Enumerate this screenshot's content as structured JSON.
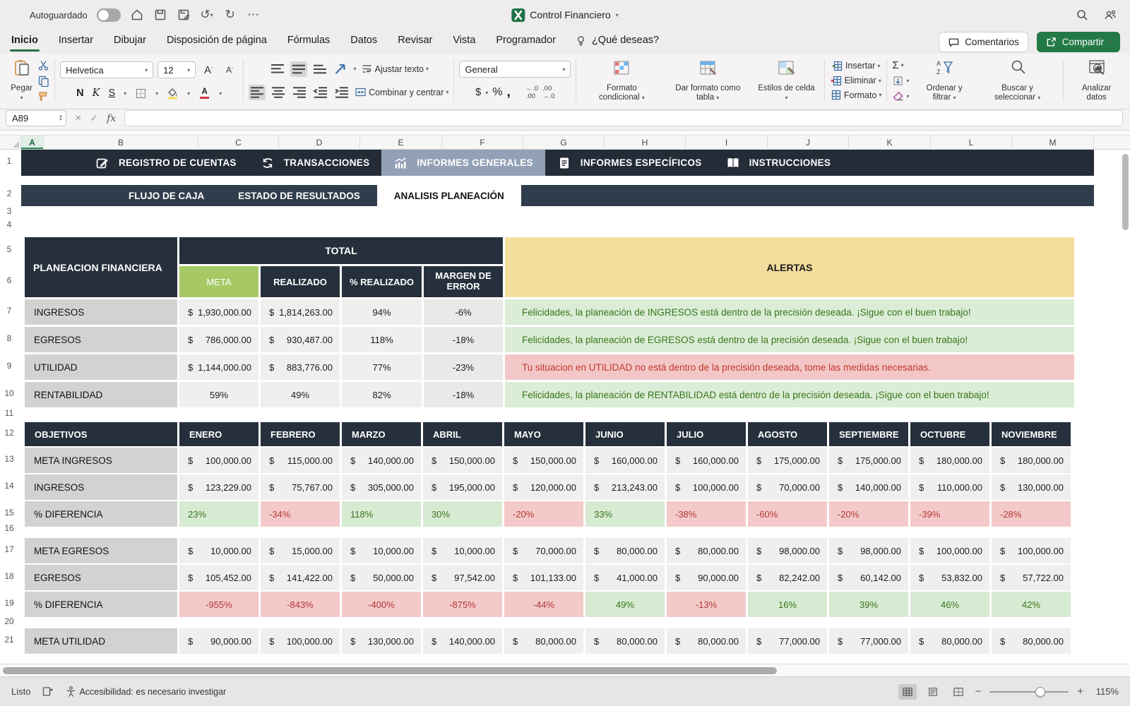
{
  "titlebar": {
    "autosave": "Autoguardado",
    "title": "Control Financiero"
  },
  "ribbon_tabs": {
    "items": [
      "Inicio",
      "Insertar",
      "Dibujar",
      "Disposición de página",
      "Fórmulas",
      "Datos",
      "Revisar",
      "Vista",
      "Programador"
    ],
    "active": "Inicio",
    "help": "¿Qué deseas?",
    "comments": "Comentarios",
    "share": "Compartir"
  },
  "ribbon": {
    "paste": "Pegar",
    "font": "Helvetica",
    "font_size": "12",
    "bold": "N",
    "italic": "K",
    "underline": "S",
    "wrap": "Ajustar texto",
    "merge": "Combinar y centrar",
    "number_format": "General",
    "currency": "$",
    "percent": "%",
    "comma": ",",
    "conditional": "Formato condicional",
    "format_table": "Dar formato como tabla",
    "cell_styles": "Estilos de celda",
    "insert": "Insertar",
    "delete": "Eliminar",
    "format": "Formato",
    "sort": "Ordenar y filtrar",
    "find": "Buscar y seleccionar",
    "analyze": "Analizar datos"
  },
  "formula_bar": {
    "name_box": "A89",
    "fx": "fx"
  },
  "grid": {
    "columns": [
      "A",
      "B",
      "C",
      "D",
      "E",
      "F",
      "G",
      "H",
      "I",
      "J",
      "K",
      "L",
      "M"
    ],
    "selected_column": "A",
    "rows": [
      "1",
      "2",
      "3",
      "4",
      "5",
      "6",
      "7",
      "8",
      "9",
      "10",
      "11",
      "12",
      "13",
      "14",
      "15",
      "16",
      "17",
      "18",
      "19",
      "20",
      "21"
    ]
  },
  "sheet_nav": {
    "tabs": [
      {
        "label": "REGISTRO DE CUENTAS",
        "icon": "edit-icon",
        "active": false
      },
      {
        "label": "TRANSACCIONES",
        "icon": "sync-icon",
        "active": false
      },
      {
        "label": "INFORMES GENERALES",
        "icon": "chart-icon",
        "active": true
      },
      {
        "label": "INFORMES ESPECÍFICOS",
        "icon": "document-icon",
        "active": false
      },
      {
        "label": "INSTRUCCIONES",
        "icon": "book-icon",
        "active": false
      }
    ],
    "subtabs": [
      {
        "label": "FLUJO DE CAJA",
        "active": false
      },
      {
        "label": "ESTADO DE RESULTADOS",
        "active": false
      },
      {
        "label": "ANALISIS PLANEACIÓN",
        "active": true
      }
    ]
  },
  "plan_table": {
    "title": "PLANEACION FINANCIERA",
    "total": "TOTAL",
    "alerts": "ALERTAS",
    "headers": [
      "META",
      "REALIZADO",
      "% REALIZADO",
      "MARGEN DE ERROR"
    ],
    "rows": [
      {
        "label": "INGRESOS",
        "meta": {
          "cur": "$",
          "val": "1,930,000.00"
        },
        "real": {
          "cur": "$",
          "val": "1,814,263.00"
        },
        "pct": "94%",
        "margin": "-6%",
        "alert": {
          "text": "Felicidades, la planeación de INGRESOS está dentro de la precisión deseada. ¡Sigue con el buen trabajo!",
          "type": "good"
        }
      },
      {
        "label": "EGRESOS",
        "meta": {
          "cur": "$",
          "val": "786,000.00"
        },
        "real": {
          "cur": "$",
          "val": "930,487.00"
        },
        "pct": "118%",
        "margin": "-18%",
        "alert": {
          "text": "Felicidades, la planeación de EGRESOS está dentro de la precisión deseada. ¡Sigue con el buen trabajo!",
          "type": "good"
        }
      },
      {
        "label": "UTILIDAD",
        "meta": {
          "cur": "$",
          "val": "1,144,000.00"
        },
        "real": {
          "cur": "$",
          "val": "883,776.00"
        },
        "pct": "77%",
        "margin": "-23%",
        "alert": {
          "text": "Tu situacion en UTILIDAD no está dentro de la precisión deseada, tome las medidas necesarias.",
          "type": "bad"
        }
      },
      {
        "label": "RENTABILIDAD",
        "meta": {
          "val": "59%"
        },
        "real": {
          "val": "49%"
        },
        "pct": "82%",
        "margin": "-18%",
        "alert": {
          "text": "Felicidades, la planeación de RENTABILIDAD está dentro de la precisión deseada. ¡Sigue con el buen trabajo!",
          "type": "good"
        }
      }
    ]
  },
  "objetivos": {
    "header": "OBJETIVOS",
    "currency": "$",
    "months": [
      "ENERO",
      "FEBRERO",
      "MARZO",
      "ABRIL",
      "MAYO",
      "JUNIO",
      "JULIO",
      "AGOSTO",
      "SEPTIEMBRE",
      "OCTUBRE",
      "NOVIEMBRE"
    ],
    "sections": [
      {
        "rows": [
          {
            "label": "META INGRESOS",
            "kind": "money",
            "values": [
              "100,000.00",
              "115,000.00",
              "140,000.00",
              "150,000.00",
              "150,000.00",
              "160,000.00",
              "160,000.00",
              "175,000.00",
              "175,000.00",
              "180,000.00",
              "180,000.00"
            ]
          },
          {
            "label": "INGRESOS",
            "kind": "money",
            "values": [
              "123,229.00",
              "75,767.00",
              "305,000.00",
              "195,000.00",
              "120,000.00",
              "213,243.00",
              "100,000.00",
              "70,000.00",
              "140,000.00",
              "110,000.00",
              "130,000.00"
            ]
          },
          {
            "label": "% DIFERENCIA",
            "kind": "diff",
            "align": "left",
            "values": [
              "23%",
              "-34%",
              "118%",
              "30%",
              "-20%",
              "33%",
              "-38%",
              "-60%",
              "-20%",
              "-39%",
              "-28%"
            ]
          }
        ]
      },
      {
        "rows": [
          {
            "label": "META EGRESOS",
            "kind": "money",
            "values": [
              "10,000.00",
              "15,000.00",
              "10,000.00",
              "10,000.00",
              "70,000.00",
              "80,000.00",
              "80,000.00",
              "98,000.00",
              "98,000.00",
              "100,000.00",
              "100,000.00"
            ]
          },
          {
            "label": "EGRESOS",
            "kind": "money",
            "values": [
              "105,452.00",
              "141,422.00",
              "50,000.00",
              "97,542.00",
              "101,133.00",
              "41,000.00",
              "90,000.00",
              "82,242.00",
              "60,142.00",
              "53,832.00",
              "57,722.00"
            ]
          },
          {
            "label": "% DIFERENCIA",
            "kind": "diff",
            "align": "center",
            "values": [
              "-955%",
              "-843%",
              "-400%",
              "-875%",
              "-44%",
              "49%",
              "-13%",
              "16%",
              "39%",
              "46%",
              "42%"
            ]
          }
        ]
      },
      {
        "rows": [
          {
            "label": "META UTILIDAD",
            "kind": "money",
            "values": [
              "90,000.00",
              "100,000.00",
              "130,000.00",
              "140,000.00",
              "80,000.00",
              "80,000.00",
              "80,000.00",
              "77,000.00",
              "77,000.00",
              "80,000.00",
              "80,000.00"
            ]
          }
        ]
      }
    ]
  },
  "statusbar": {
    "ready": "Listo",
    "accessibility": "Accesibilidad: es necesario investigar",
    "zoom": "115%"
  }
}
